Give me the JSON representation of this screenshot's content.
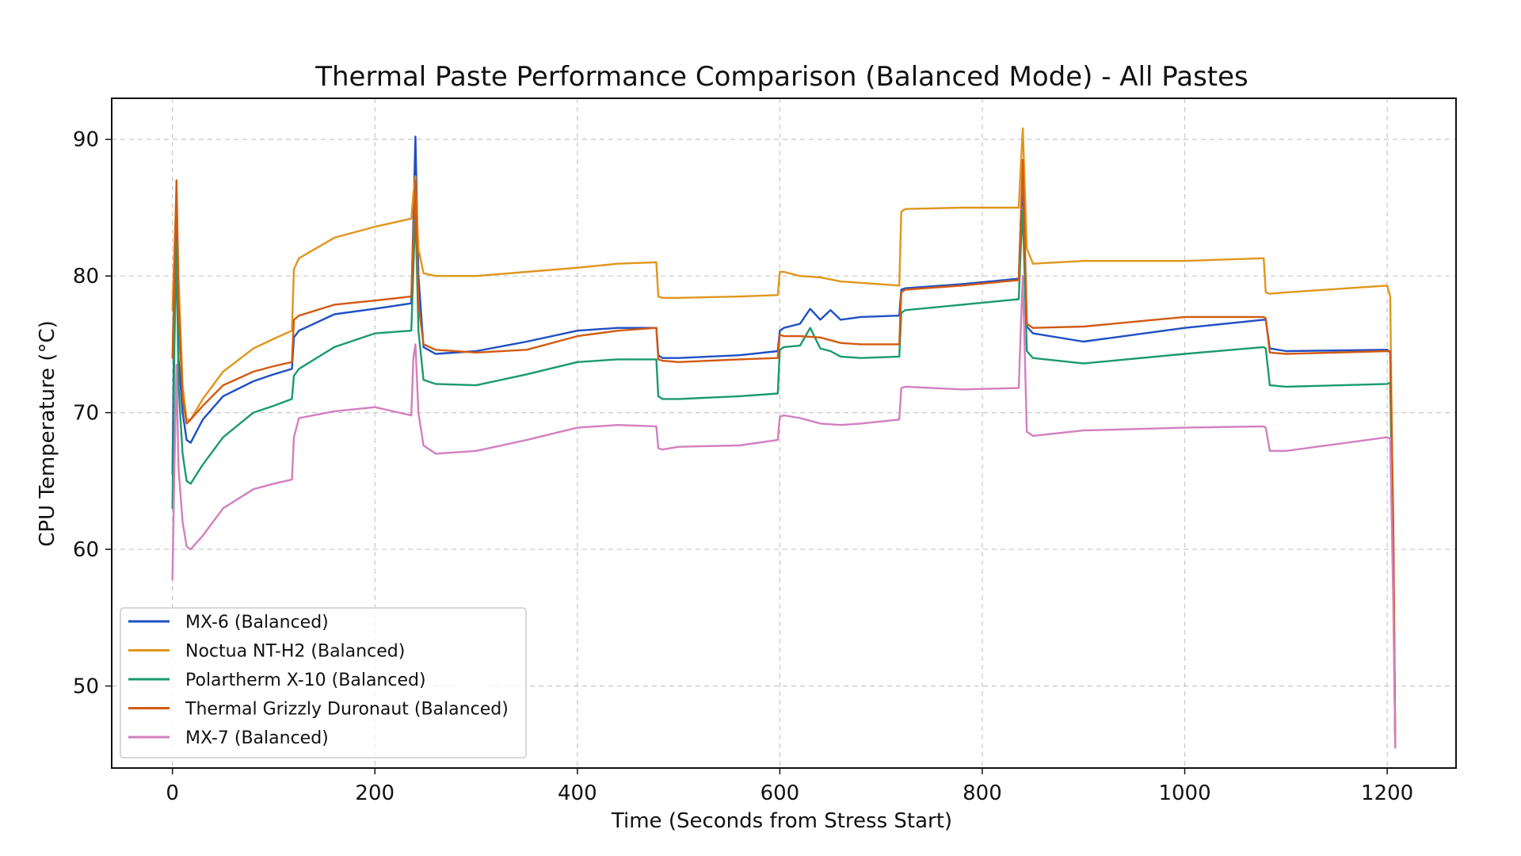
{
  "chart_data": {
    "type": "line",
    "title": "Thermal Paste Performance Comparison (Balanced Mode) - All Pastes",
    "xlabel": "Time (Seconds from Stress Start)",
    "ylabel": "CPU Temperature (°C)",
    "xlim": [
      -60,
      1268
    ],
    "ylim": [
      44,
      93
    ],
    "xticks": [
      0,
      200,
      400,
      600,
      800,
      1000,
      1200
    ],
    "yticks": [
      50,
      60,
      70,
      80,
      90
    ],
    "grid": true,
    "legend_position": "lower-left",
    "series": [
      {
        "name": "MX-6 (Balanced)",
        "color": "#1f4fc4",
        "x": [
          0,
          2,
          4,
          6,
          10,
          14,
          18,
          30,
          50,
          80,
          100,
          118,
          120,
          125,
          160,
          200,
          236,
          238,
          240,
          243,
          248,
          260,
          300,
          350,
          400,
          440,
          478,
          480,
          484,
          500,
          560,
          598,
          600,
          604,
          620,
          630,
          640,
          650,
          660,
          680,
          718,
          720,
          724,
          780,
          836,
          838,
          840,
          844,
          850,
          900,
          1000,
          1078,
          1080,
          1084,
          1100,
          1200,
          1203,
          1206,
          1208
        ],
        "y": [
          65.5,
          78,
          85.5,
          74,
          70,
          68,
          67.8,
          69.5,
          71.2,
          72.3,
          72.8,
          73.2,
          75.5,
          76,
          77.2,
          77.6,
          78,
          84,
          90.2,
          80,
          74.8,
          74.3,
          74.5,
          75.2,
          76,
          76.2,
          76.2,
          74.2,
          74,
          74,
          74.2,
          74.5,
          76,
          76.2,
          76.5,
          77.6,
          76.8,
          77.5,
          76.8,
          77,
          77.1,
          79,
          79.1,
          79.4,
          79.8,
          84,
          87,
          76.3,
          75.8,
          75.2,
          76.2,
          76.8,
          76.8,
          74.7,
          74.5,
          74.6,
          74.4,
          60,
          45.5
        ]
      },
      {
        "name": "Noctua NT-H2 (Balanced)",
        "color": "#e0961b",
        "x": [
          0,
          2,
          4,
          6,
          10,
          14,
          18,
          30,
          50,
          80,
          100,
          118,
          120,
          125,
          160,
          200,
          236,
          238,
          240,
          243,
          248,
          260,
          300,
          350,
          400,
          440,
          478,
          480,
          484,
          500,
          560,
          598,
          600,
          604,
          620,
          640,
          660,
          680,
          718,
          720,
          724,
          780,
          836,
          838,
          840,
          844,
          850,
          900,
          1000,
          1078,
          1080,
          1084,
          1100,
          1200,
          1203,
          1206,
          1208
        ],
        "y": [
          77.5,
          82,
          86.5,
          80,
          72,
          69.5,
          69.5,
          71,
          73,
          74.7,
          75.4,
          76,
          80.5,
          81.3,
          82.8,
          83.6,
          84.2,
          86,
          87.3,
          82,
          80.2,
          80,
          80,
          80.3,
          80.6,
          80.9,
          81,
          78.5,
          78.4,
          78.4,
          78.5,
          78.6,
          80.3,
          80.3,
          80,
          79.9,
          79.6,
          79.5,
          79.3,
          84.7,
          84.9,
          85,
          85,
          88,
          90.8,
          82,
          80.9,
          81.1,
          81.1,
          81.3,
          78.8,
          78.7,
          78.8,
          79.3,
          78.5,
          60,
          45.5
        ]
      },
      {
        "name": "Polartherm X-10 (Balanced)",
        "color": "#1a9a6c",
        "x": [
          0,
          2,
          4,
          6,
          10,
          14,
          18,
          30,
          50,
          80,
          100,
          118,
          120,
          125,
          160,
          200,
          236,
          238,
          240,
          243,
          248,
          260,
          300,
          350,
          400,
          440,
          478,
          480,
          484,
          500,
          560,
          598,
          600,
          604,
          620,
          630,
          640,
          650,
          660,
          680,
          718,
          720,
          724,
          780,
          836,
          838,
          840,
          844,
          850,
          900,
          1000,
          1078,
          1080,
          1084,
          1100,
          1200,
          1203,
          1206,
          1208
        ],
        "y": [
          63,
          75,
          82.5,
          72,
          67,
          65,
          64.8,
          66.2,
          68.2,
          70,
          70.5,
          71,
          72.7,
          73.2,
          74.8,
          75.8,
          76,
          80.5,
          85,
          76,
          72.4,
          72.1,
          72,
          72.8,
          73.7,
          73.9,
          73.9,
          71.2,
          71,
          71,
          71.2,
          71.4,
          74.6,
          74.8,
          74.9,
          76.2,
          74.7,
          74.5,
          74.1,
          74,
          74.1,
          77.3,
          77.5,
          77.9,
          78.3,
          82,
          84.8,
          74.5,
          74,
          73.6,
          74.3,
          74.8,
          74.7,
          72,
          71.9,
          72.1,
          72.2,
          58,
          45.5
        ]
      },
      {
        "name": "Thermal Grizzly Duronaut (Balanced)",
        "color": "#d35a12",
        "x": [
          0,
          2,
          4,
          6,
          10,
          14,
          18,
          30,
          50,
          80,
          100,
          118,
          120,
          125,
          160,
          200,
          236,
          238,
          240,
          243,
          248,
          260,
          300,
          350,
          400,
          440,
          478,
          480,
          484,
          500,
          560,
          598,
          600,
          604,
          620,
          640,
          660,
          680,
          718,
          720,
          724,
          780,
          836,
          838,
          840,
          844,
          850,
          900,
          1000,
          1078,
          1080,
          1084,
          1100,
          1200,
          1203,
          1206,
          1208
        ],
        "y": [
          74,
          80,
          87,
          78,
          71,
          69.2,
          69.5,
          70.5,
          72,
          73,
          73.4,
          73.7,
          76.8,
          77.1,
          77.9,
          78.2,
          78.5,
          83,
          87,
          78,
          75,
          74.6,
          74.4,
          74.6,
          75.6,
          76,
          76.2,
          73.9,
          73.8,
          73.7,
          73.9,
          74,
          75.7,
          75.6,
          75.6,
          75.5,
          75.1,
          75,
          75,
          78.8,
          79,
          79.3,
          79.7,
          84,
          88.5,
          76.5,
          76.2,
          76.3,
          77,
          77,
          76.9,
          74.4,
          74.3,
          74.5,
          74.5,
          62,
          45.5
        ]
      },
      {
        "name": "MX-7 (Balanced)",
        "color": "#d37fc0",
        "x": [
          0,
          2,
          4,
          6,
          10,
          14,
          18,
          30,
          50,
          80,
          100,
          118,
          120,
          125,
          160,
          200,
          236,
          238,
          240,
          243,
          248,
          260,
          300,
          350,
          400,
          440,
          478,
          480,
          484,
          500,
          560,
          598,
          600,
          604,
          620,
          640,
          660,
          680,
          718,
          720,
          724,
          780,
          836,
          838,
          840,
          844,
          850,
          900,
          1000,
          1078,
          1080,
          1084,
          1100,
          1200,
          1203,
          1206,
          1208
        ],
        "y": [
          57.8,
          66,
          73.5,
          66,
          62,
          60.2,
          60,
          61,
          63,
          64.4,
          64.8,
          65.1,
          68.2,
          69.6,
          70.1,
          70.4,
          69.8,
          74,
          75,
          70,
          67.6,
          67,
          67.2,
          68,
          68.9,
          69.1,
          69,
          67.4,
          67.3,
          67.5,
          67.6,
          68,
          69.7,
          69.8,
          69.6,
          69.2,
          69.1,
          69.2,
          69.5,
          71.8,
          71.9,
          71.7,
          71.8,
          76,
          80,
          68.6,
          68.3,
          68.7,
          68.9,
          69,
          68.9,
          67.2,
          67.2,
          68.2,
          68.1,
          56,
          45.5
        ]
      }
    ]
  }
}
